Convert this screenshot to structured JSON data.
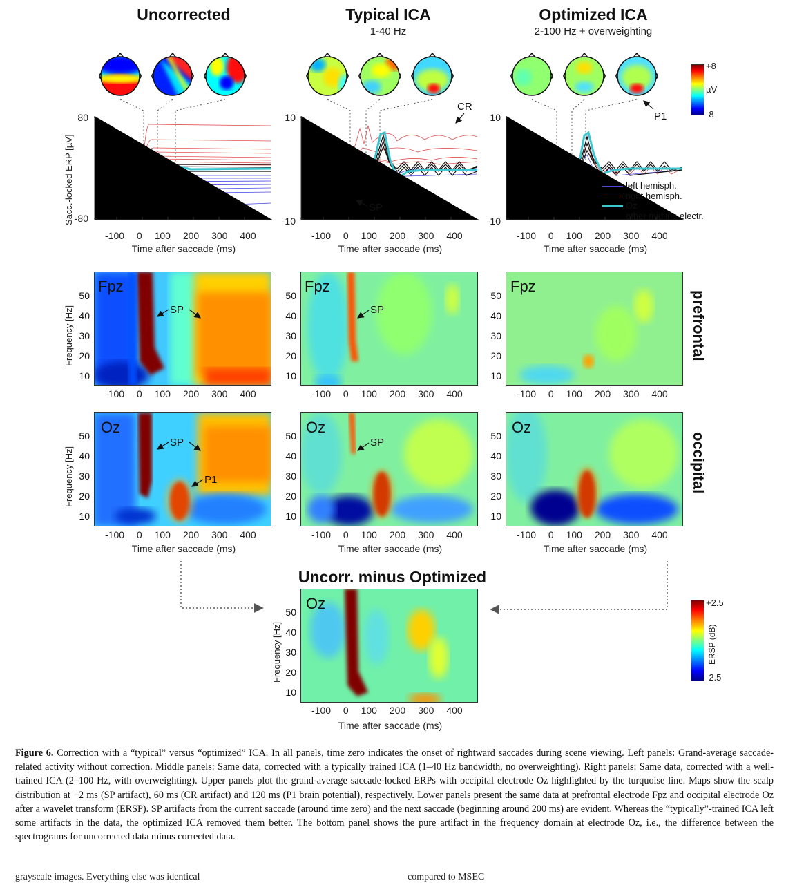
{
  "columns": [
    {
      "title": "Uncorrected",
      "subtitle": ""
    },
    {
      "title": "Typical ICA",
      "subtitle": "1-40 Hz"
    },
    {
      "title": "Optimized ICA",
      "subtitle": "2-100 Hz + overweighting"
    }
  ],
  "erp": {
    "ylabel": "Sacc.-locked ERP [µV]",
    "ylims": [
      [
        "80",
        "-80"
      ],
      [
        "10",
        "-10"
      ],
      [
        "10",
        "-10"
      ]
    ],
    "xticks": [
      "-100",
      "0",
      "100",
      "200",
      "300",
      "400"
    ],
    "xlabel": "Time after saccade (ms)",
    "annotations": {
      "cr": "CR",
      "sp": "SP",
      "p1": "P1"
    },
    "legend": [
      {
        "label": "left hemisph.",
        "color": "#4a4adf"
      },
      {
        "label": "right hemisph.",
        "color": "#df4a4a"
      },
      {
        "label": "Oz",
        "color": "#3cc6cf"
      },
      {
        "label": "other midline electr.",
        "color": "#000000"
      }
    ]
  },
  "map_colorbar": {
    "top": "+8",
    "unit": "µV",
    "bottom": "-8"
  },
  "tf": {
    "ylabel": "Frequency [Hz]",
    "yticks": [
      "50",
      "40",
      "30",
      "20",
      "10"
    ],
    "xticks": [
      "-100",
      "0",
      "100",
      "200",
      "300",
      "400"
    ],
    "xlabel": "Time after saccade (ms)",
    "rows": [
      {
        "electrode": "Fpz",
        "side": "prefrontal"
      },
      {
        "electrode": "Oz",
        "side": "occipital"
      }
    ],
    "sp": "SP",
    "p1": "P1"
  },
  "diff": {
    "title": "Uncorr. minus Optimized",
    "electrode": "Oz",
    "colorbar": {
      "top": "+2.5",
      "unit": "ERSP (dB)",
      "bottom": "-2.5"
    }
  },
  "caption": {
    "label": "Figure 6.",
    "text": "Correction with a “typical” versus “optimized” ICA. In all panels, time zero indicates the onset of rightward saccades during scene viewing. Left panels: Grand-average saccade-related activity without correction. Middle panels: Same data, corrected with a typically trained ICA (1–40 Hz bandwidth, no overweighting). Right panels: Same data, corrected with a well-trained ICA (2–100 Hz, with overweighting). Upper panels plot the grand-average saccade-locked ERPs with occipital electrode Oz highlighted by the turquoise line. Maps show the scalp distribution at −2 ms (SP artifact), 60 ms (CR artifact) and 120 ms (P1 brain potential), respectively. Lower panels present the same data at prefrontal electrode Fpz and occipital electrode Oz after a wavelet transform (ERSP). SP artifacts from the current saccade (around time zero) and the next saccade (beginning around 200 ms) are evident. Whereas the “typically”-trained ICA left some artifacts in the data, the optimized ICA removed them better. The bottom panel shows the pure artifact in the frequency domain at electrode Oz, i.e., the difference between the spectrograms for uncorrected data minus corrected data."
  },
  "footer": {
    "left": "grayscale images. Everything else was identical",
    "right": "compared to MSEC"
  }
}
